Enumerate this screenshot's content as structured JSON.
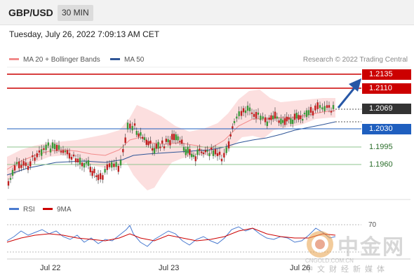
{
  "header": {
    "pair": "GBP/USD",
    "timeframe": "30 MIN"
  },
  "datetime": "Tuesday, July 26, 2022 7:09:13 AM CET",
  "legend": [
    {
      "label": "MA 20 + Bollinger Bands",
      "color": "#f28b8b"
    },
    {
      "label": "MA 50",
      "color": "#2f5597"
    }
  ],
  "research": "Research © 2022 Trading Central",
  "levels": [
    {
      "value": "1.2135",
      "kind": "resistance",
      "color": "#cc0000"
    },
    {
      "value": "1.2110",
      "kind": "resistance",
      "color": "#cc0000"
    },
    {
      "value": "1.2069",
      "kind": "last",
      "color": "#333333"
    },
    {
      "value": "1.2030",
      "kind": "pivot",
      "color": "#1f5fbf"
    },
    {
      "value": "1.1995",
      "kind": "support",
      "color": "#5aa05a"
    },
    {
      "value": "1.1960",
      "kind": "support",
      "color": "#5aa05a"
    }
  ],
  "rsi_legend": [
    {
      "label": "RSI",
      "color": "#4a7bd0"
    },
    {
      "label": "9MA",
      "color": "#cc0000"
    }
  ],
  "rsi_level": "70",
  "xaxis": [
    "Jul 22",
    "Jul 23",
    "Jul 26"
  ],
  "watermark": {
    "name": "中金网",
    "url": "CNGOLD.COM.CN",
    "tagline": "中文财经新媒体"
  },
  "chart_data": {
    "type": "line",
    "title": "GBP/USD",
    "x": [
      "Jul 22",
      "Jul 23",
      "Jul 26"
    ],
    "price_levels": [
      1.2135,
      1.211,
      1.2069,
      1.203,
      1.1995,
      1.196
    ],
    "last_price": 1.2069,
    "series": [
      {
        "name": "MA 20 + Bollinger Bands"
      },
      {
        "name": "MA 50"
      },
      {
        "name": "RSI"
      },
      {
        "name": "9MA"
      }
    ]
  }
}
